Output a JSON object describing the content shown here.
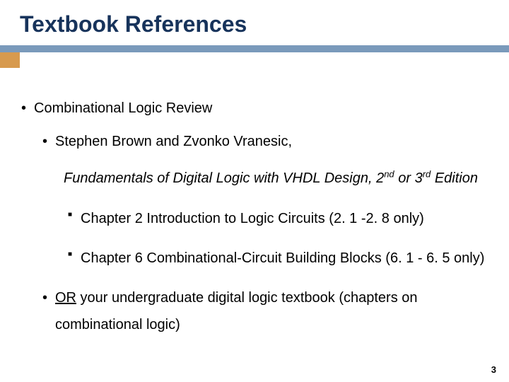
{
  "title": "Textbook References",
  "colors": {
    "title": "#17335b",
    "underline": "#7a9abb",
    "accent": "#d79a4e",
    "text": "#000000",
    "background": "#ffffff"
  },
  "content": {
    "l1": "Combinational Logic Review",
    "l2_authors": "Stephen Brown and Zvonko Vranesic,",
    "book_title_part1": "Fundamentals of Digital Logic with VHDL Design, 2",
    "book_sup1": "nd",
    "book_or": " or ",
    "book_part2": "3",
    "book_sup2": "rd",
    "book_part3": " Edition",
    "ch1": "Chapter 2 Introduction to Logic Circuits (2. 1 -2. 8 only)",
    "ch2": "Chapter 6 Combinational-Circuit Building Blocks  (6. 1 - 6. 5 only)",
    "or_label": "OR",
    "or_rest": " your undergraduate digital logic textbook (chapters on combinational logic)"
  },
  "page_number": "3"
}
